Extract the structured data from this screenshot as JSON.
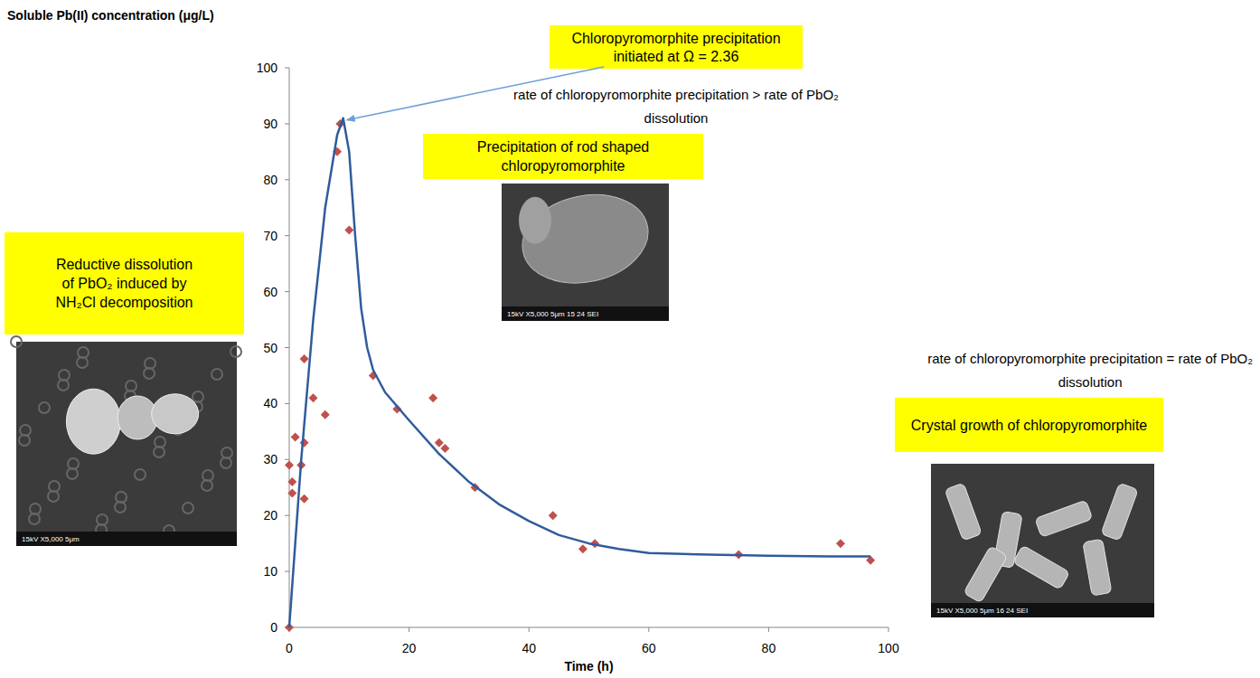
{
  "chart_data": {
    "type": "scatter",
    "y_label": "Soluble Pb(II) concentration (μg/L)",
    "x_label": "Time (h)",
    "xlim": [
      0,
      100
    ],
    "ylim": [
      0,
      100
    ],
    "xticks": [
      0,
      20,
      40,
      60,
      80,
      100
    ],
    "yticks": [
      0,
      10,
      20,
      30,
      40,
      50,
      60,
      70,
      80,
      90,
      100
    ],
    "grid": false,
    "series": [
      {
        "type": "scatter",
        "marker": "diamond",
        "color": "#c0504d",
        "x": [
          0,
          0,
          0.5,
          0.5,
          1,
          2,
          2.5,
          2.5,
          2.5,
          4,
          6,
          8,
          8.5,
          10,
          14,
          18,
          24,
          25,
          26,
          31,
          44,
          49,
          51,
          75,
          92,
          97
        ],
        "values": [
          0,
          29,
          26,
          24,
          34,
          29,
          33,
          23,
          48,
          41,
          38,
          85,
          90,
          71,
          45,
          39,
          41,
          33,
          32,
          25,
          20,
          14,
          15,
          13,
          15,
          12
        ]
      },
      {
        "type": "line",
        "line_style": "solid",
        "color": "#2f5c9c",
        "x": [
          0,
          2,
          4,
          6,
          8,
          9,
          10,
          11,
          12,
          13,
          14,
          16,
          20,
          25,
          30,
          35,
          40,
          45,
          50,
          55,
          60,
          70,
          80,
          90,
          97
        ],
        "values": [
          0,
          30,
          55,
          75,
          88,
          91,
          85,
          70,
          57,
          50,
          46,
          42,
          37,
          31,
          26,
          22,
          19,
          16.5,
          15,
          14,
          13.3,
          13,
          12.8,
          12.7,
          12.7
        ]
      }
    ],
    "annotations": [
      {
        "text": "Reductive dissolution of PbO₂ induced by NH₂Cl decomposition",
        "color": "#ffff00"
      },
      {
        "text": "Chloropyromorphite precipitation initiated at Ω = 2.36",
        "color": "#ffff00",
        "x": 9,
        "y": 91
      },
      {
        "text": "rate of chloropyromorphite precipitation > rate of PbO₂ dissolution"
      },
      {
        "text": "Precipitation of rod shaped chloropyromorphite",
        "color": "#ffff00"
      },
      {
        "text": "rate of chloropyromorphite precipitation = rate of PbO₂ dissolution"
      },
      {
        "text": "Crystal growth of chloropyromorphite",
        "color": "#ffff00"
      }
    ],
    "micrographs": [
      {
        "label": "15kV  X5,000  5μm"
      },
      {
        "label": "15kV  X5,000  5μm  15 24 SEI"
      },
      {
        "label": "15kV  X5,000  5μm  16 24 SEI"
      }
    ]
  }
}
